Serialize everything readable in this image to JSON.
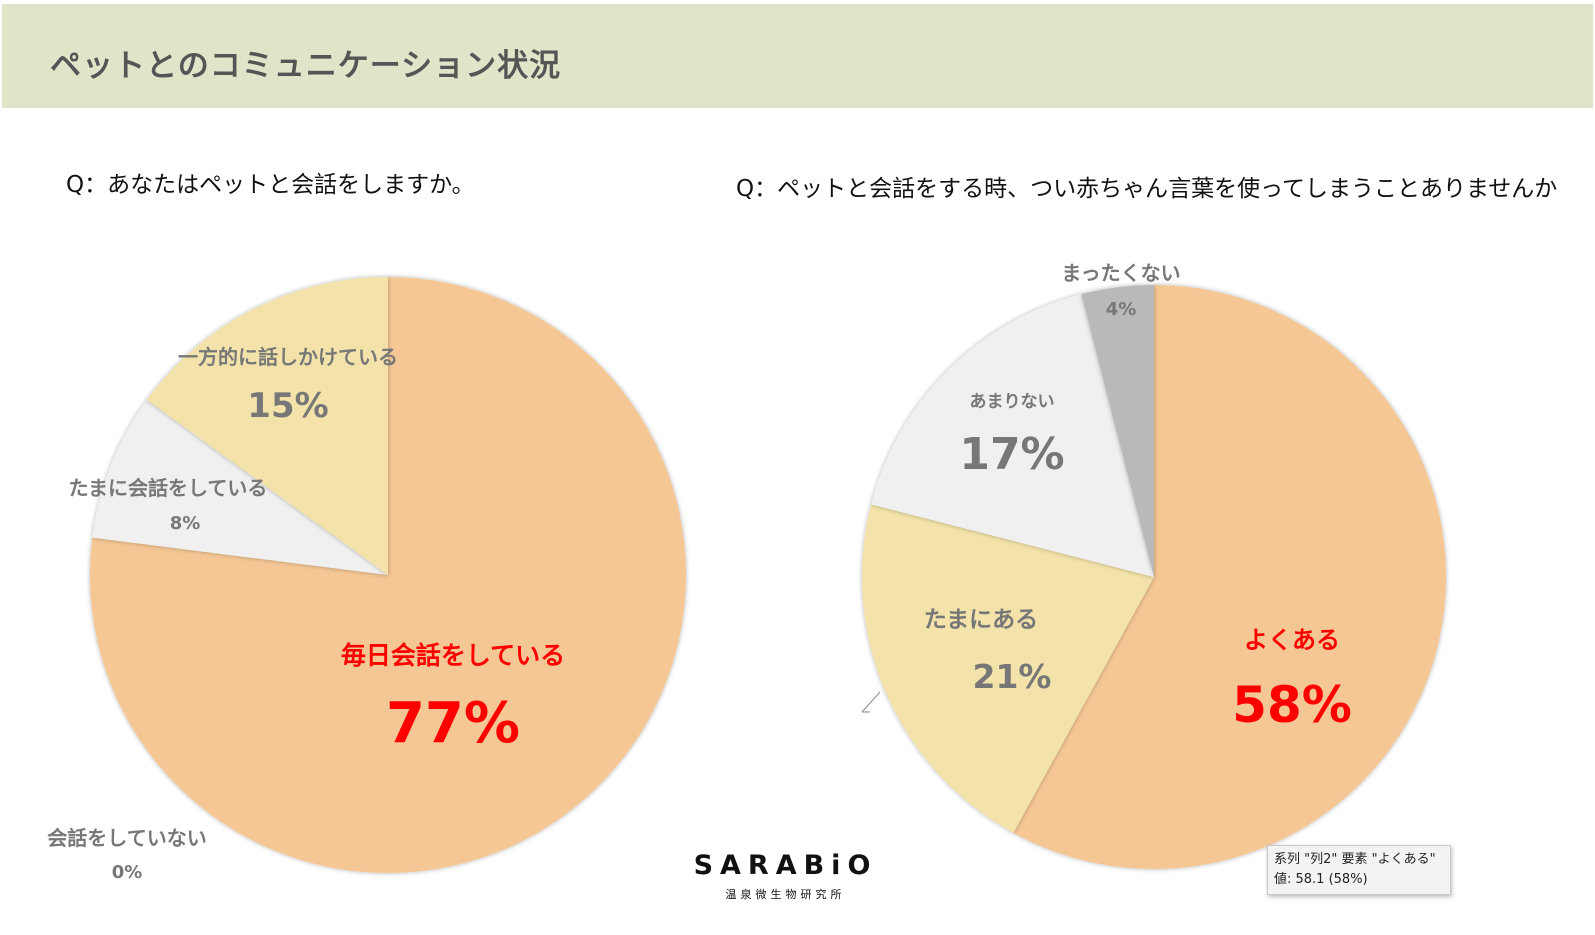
{
  "header": {
    "title": "ペットとのコミュニケーション状況"
  },
  "questions": [
    "Q：あなたはペットと会話をしますか。",
    "Q：ペットと会話をする時、つい赤ちゃん言葉を使ってしまうことありませんか"
  ],
  "logo": {
    "name": "SARABiO",
    "subtitle": "温泉微生物研究所"
  },
  "tooltip": {
    "line1": "系列 \"列2\" 要素 \"よくある\"",
    "line2": "値: 58.1 (58%)"
  },
  "colors": {
    "header_bg": "#e0e5c9",
    "orange": "#f5c794",
    "yellow": "#f3e3aa",
    "light_gray": "#f0f0f0",
    "gray": "#b9b9b9",
    "highlight_red": "#ff0000",
    "label_gray": "#777777"
  },
  "chart_data": [
    {
      "type": "pie",
      "categories": [
        "毎日会話をしている",
        "会話をしていない",
        "たまに会話をしている",
        "一方的に話しかけている"
      ],
      "values": [
        77,
        0,
        8,
        15
      ],
      "labels": [
        "77%",
        "0%",
        "8%",
        "15%"
      ],
      "colors": [
        "#f5c794",
        "#f5c794",
        "#f0f0f0",
        "#f3e3aa"
      ],
      "start_angle": "12 o'clock, clockwise"
    },
    {
      "type": "pie",
      "categories": [
        "よくある",
        "たまにある",
        "あまりない",
        "まったくない"
      ],
      "values": [
        58,
        21,
        17,
        4
      ],
      "labels": [
        "58%",
        "21%",
        "17%",
        "4%"
      ],
      "colors": [
        "#f5c794",
        "#f3e3aa",
        "#f0f0f0",
        "#b9b9b9"
      ],
      "start_angle": "12 o'clock, clockwise"
    }
  ]
}
